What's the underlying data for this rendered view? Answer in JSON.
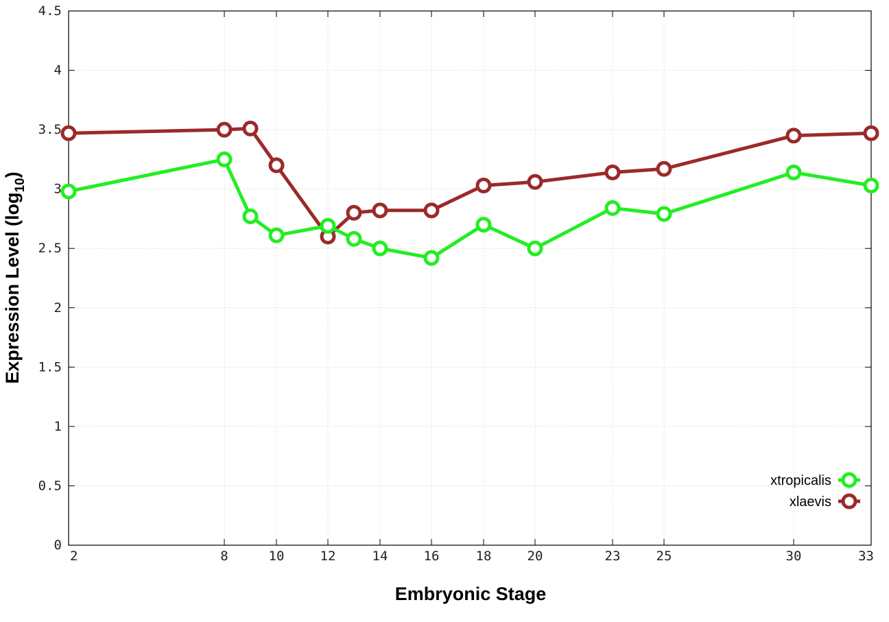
{
  "chart_data": {
    "type": "line",
    "xlabel": "Embryonic Stage",
    "ylabel_main": "Expression Level (log",
    "ylabel_sub": "10",
    "ylabel_close": ")",
    "x_ticks": [
      "2",
      "8",
      "10",
      "12",
      "14",
      "16",
      "18",
      "20",
      "23",
      "25",
      "30",
      "33"
    ],
    "y_ticks": [
      "0",
      "0.5",
      "1",
      "1.5",
      "2",
      "2.5",
      "3",
      "3.5",
      "4",
      "4.5"
    ],
    "ylim": [
      0,
      4.5
    ],
    "x_scale": "piecewise",
    "grid": true,
    "legend_position": "bottom-right",
    "series": [
      {
        "name": "xtropicalis",
        "color": "#22ee22",
        "x": [
          2,
          8,
          9,
          10,
          12,
          13,
          14,
          16,
          18,
          20,
          23,
          25,
          30,
          33
        ],
        "values": [
          2.98,
          3.25,
          2.77,
          2.61,
          2.69,
          2.58,
          2.5,
          2.42,
          2.7,
          2.5,
          2.84,
          2.79,
          3.14,
          3.03
        ]
      },
      {
        "name": "xlaevis",
        "color": "#9b2a2a",
        "x": [
          2,
          8,
          9,
          10,
          12,
          13,
          14,
          16,
          18,
          20,
          23,
          25,
          30,
          33
        ],
        "values": [
          3.47,
          3.5,
          3.51,
          3.2,
          2.6,
          2.8,
          2.82,
          2.82,
          3.03,
          3.06,
          3.14,
          3.17,
          3.45,
          3.47
        ]
      }
    ]
  }
}
